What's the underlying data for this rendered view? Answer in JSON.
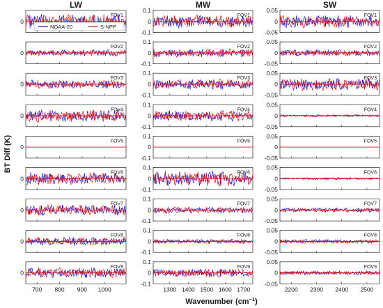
{
  "figure": {
    "ylabel": "BT Diff (K)",
    "xlabel_main": "Wavenumber (cm",
    "xlabel_sup": "−1",
    "xlabel_tail": ")",
    "legend": [
      {
        "label": "NOAA-20",
        "color": "#1010e0"
      },
      {
        "label": "S-NPP",
        "color": "#e01010"
      }
    ]
  },
  "chart_data": [
    {
      "type": "line",
      "band": "LW",
      "title": "LW",
      "xlim": [
        650,
        1095
      ],
      "ylim": [
        -0.1,
        0.1
      ],
      "xticks": [
        700,
        800,
        900,
        1000
      ],
      "yticks": [
        0
      ],
      "panels": [
        "FOV1",
        "FOV2",
        "FOV3",
        "FOV4",
        "FOV5",
        "FOV6",
        "FOV7",
        "FOV8",
        "FOV9"
      ],
      "panel_amplitudes": [
        0.07,
        0.03,
        0.04,
        0.06,
        0.0,
        0.06,
        0.05,
        0.04,
        0.05
      ],
      "series": [
        {
          "name": "NOAA-20",
          "color": "#1010e0"
        },
        {
          "name": "S-NPP",
          "color": "#e01010"
        }
      ]
    },
    {
      "type": "line",
      "band": "MW",
      "title": "MW",
      "xlim": [
        1210,
        1750
      ],
      "ylim": [
        -0.1,
        0.1
      ],
      "xticks": [
        1300,
        1400,
        1500,
        1600,
        1700
      ],
      "yticks": [
        -0.1,
        0,
        0.1
      ],
      "panels": [
        "FOV1",
        "FOV2",
        "FOV3",
        "FOV4",
        "FOV5",
        "FOV6",
        "FOV7",
        "FOV8",
        "FOV9"
      ],
      "panel_amplitudes": [
        0.06,
        0.04,
        0.05,
        0.05,
        0.0,
        0.07,
        0.03,
        0.02,
        0.04
      ],
      "series": [
        {
          "name": "NOAA-20",
          "color": "#1010e0"
        },
        {
          "name": "S-NPP",
          "color": "#e01010"
        }
      ]
    },
    {
      "type": "line",
      "band": "SW",
      "title": "SW",
      "xlim": [
        2155,
        2550
      ],
      "ylim": [
        -0.05,
        0.05
      ],
      "xticks": [
        2200,
        2300,
        2400,
        2500
      ],
      "yticks": [
        -0.05,
        0,
        0.05
      ],
      "panels": [
        "FOV1",
        "FOV2",
        "FOV3",
        "FOV4",
        "FOV5",
        "FOV6",
        "FOV7",
        "FOV8",
        "FOV9"
      ],
      "panel_amplitudes": [
        0.03,
        0.015,
        0.03,
        0.005,
        0.0,
        0.005,
        0.01,
        0.01,
        0.01
      ],
      "series": [
        {
          "name": "NOAA-20",
          "color": "#1010e0"
        },
        {
          "name": "S-NPP",
          "color": "#e01010"
        }
      ]
    }
  ]
}
